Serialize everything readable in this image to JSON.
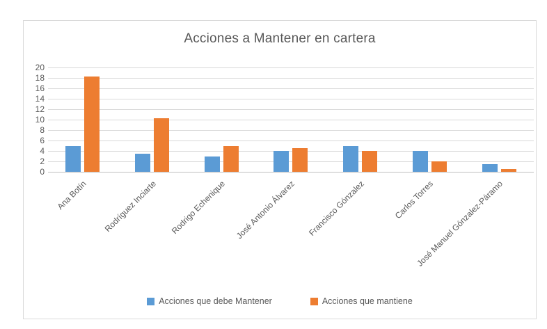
{
  "chart_data": {
    "type": "bar",
    "title": "Acciones a Mantener en cartera",
    "categories": [
      "Ana Botín",
      "Rodríguez Inciarte",
      "Rodrigo Echenique",
      "José Antonio Álvarez",
      "Francisco Gónzalez",
      "Carlos Torres",
      "José Manuel Gónzalez-Páramo"
    ],
    "series": [
      {
        "name": "Acciones que debe Mantener",
        "color": "#5b9bd5",
        "values": [
          5,
          3.5,
          3,
          4,
          5,
          4,
          1.5
        ]
      },
      {
        "name": "Acciones que mantiene",
        "color": "#ed7d31",
        "values": [
          18.3,
          10.3,
          5,
          4.5,
          4,
          2,
          0.5
        ]
      }
    ],
    "xlabel": "",
    "ylabel": "",
    "ylim": [
      0,
      20
    ],
    "yticks": [
      0,
      2,
      4,
      6,
      8,
      10,
      12,
      14,
      16,
      18,
      20
    ],
    "grid": true,
    "legend_position": "bottom",
    "bar_orientation": "vertical",
    "x_label_rotation_deg": 45
  },
  "colors": {
    "text": "#595959",
    "gridline": "#d9d9d9",
    "axis_line": "#bfbfbf",
    "frame_border": "#d9d9d9",
    "background": "#ffffff"
  }
}
